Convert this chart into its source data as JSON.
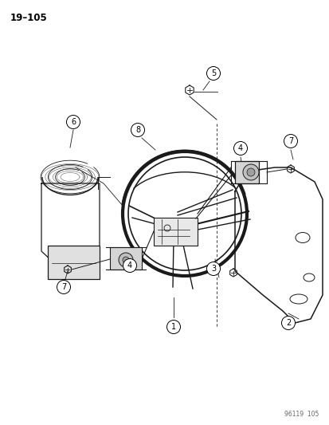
{
  "page_number": "19-105",
  "diagram_code": "96119  105",
  "background_color": "#ffffff",
  "line_color": "#1a1a1a",
  "figsize": [
    4.14,
    5.33
  ],
  "dpi": 100
}
